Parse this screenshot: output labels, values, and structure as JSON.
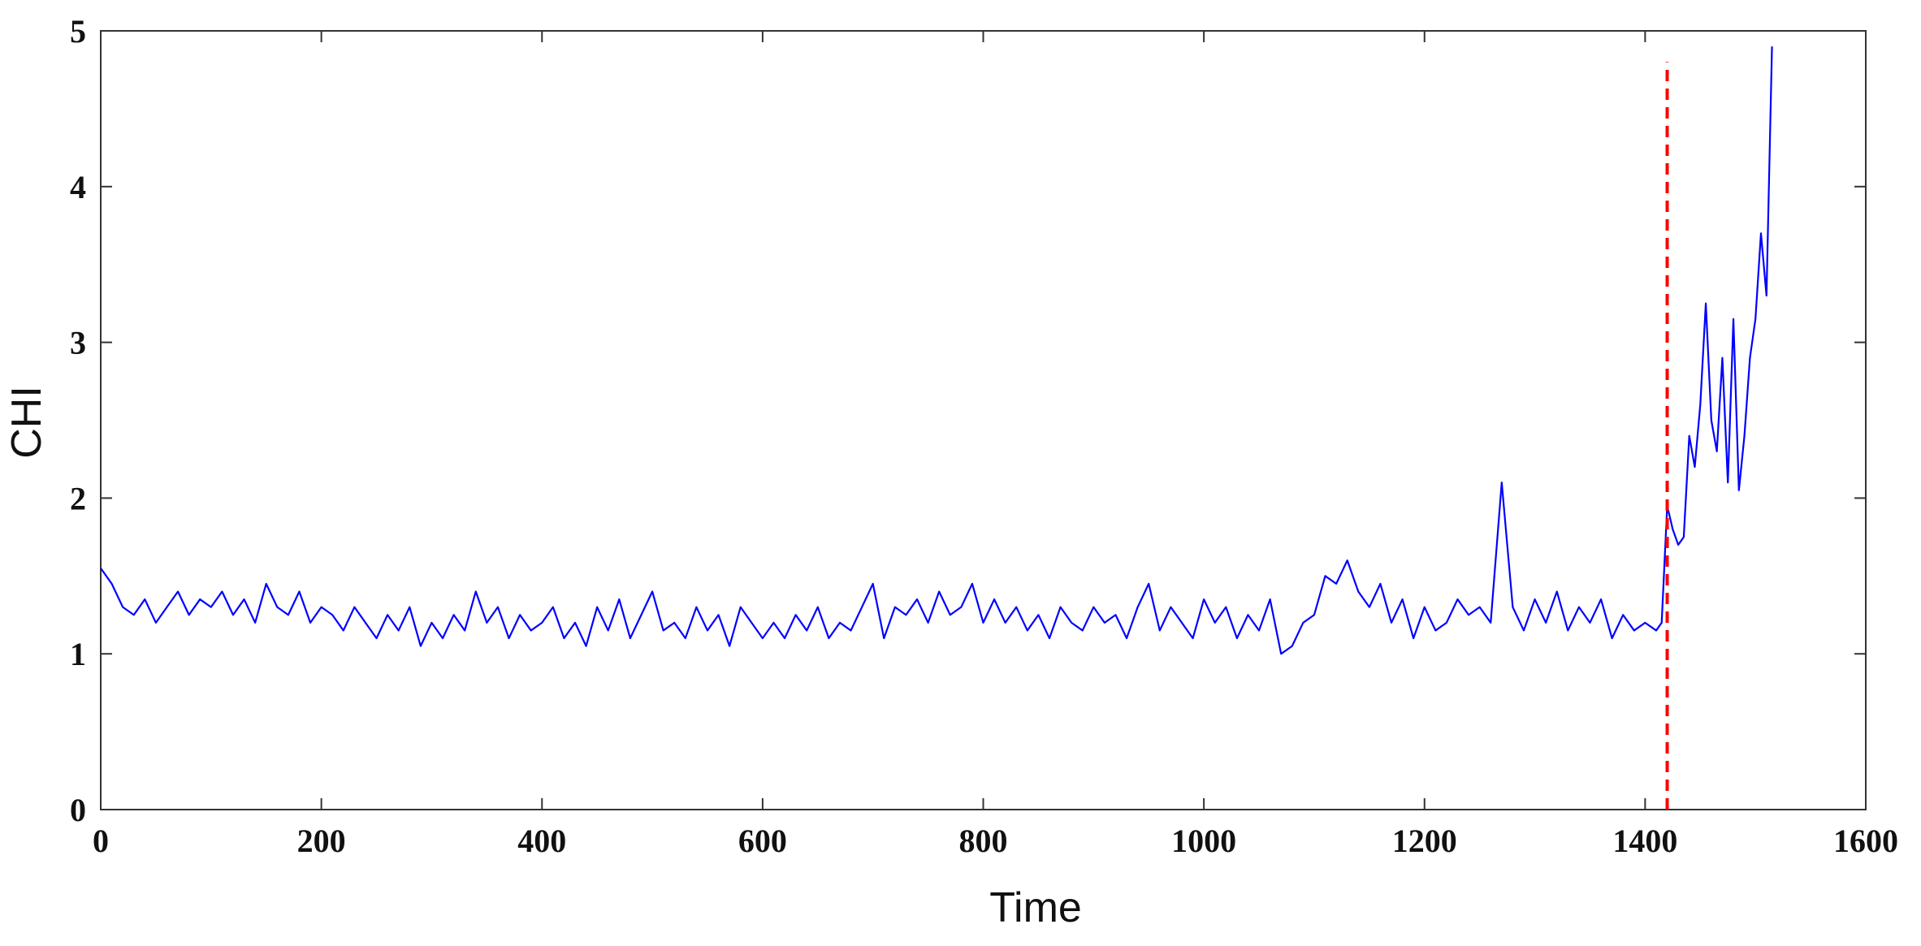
{
  "chart_data": {
    "type": "line",
    "xlabel": "Time",
    "ylabel": "CHI",
    "xlim": [
      0,
      1600
    ],
    "xticks": [
      0,
      200,
      400,
      600,
      800,
      1000,
      1200,
      1400,
      1600
    ],
    "ylim": [
      0,
      5
    ],
    "yticks": [
      0,
      1,
      2,
      3,
      4,
      5
    ],
    "series": [
      {
        "color": "#0000ff",
        "x": [
          0,
          10,
          20,
          30,
          40,
          50,
          60,
          70,
          80,
          90,
          100,
          110,
          120,
          130,
          140,
          150,
          160,
          170,
          180,
          190,
          200,
          210,
          220,
          230,
          240,
          250,
          260,
          270,
          280,
          290,
          300,
          310,
          320,
          330,
          340,
          350,
          360,
          370,
          380,
          390,
          400,
          410,
          420,
          430,
          440,
          450,
          460,
          470,
          480,
          490,
          500,
          510,
          520,
          530,
          540,
          550,
          560,
          570,
          580,
          590,
          600,
          610,
          620,
          630,
          640,
          650,
          660,
          670,
          680,
          690,
          700,
          710,
          720,
          730,
          740,
          750,
          760,
          770,
          780,
          790,
          800,
          810,
          820,
          830,
          840,
          850,
          860,
          870,
          880,
          890,
          900,
          910,
          920,
          930,
          940,
          950,
          960,
          970,
          980,
          990,
          1000,
          1010,
          1020,
          1030,
          1040,
          1050,
          1060,
          1070,
          1080,
          1090,
          1100,
          1110,
          1120,
          1130,
          1140,
          1150,
          1160,
          1170,
          1180,
          1190,
          1200,
          1210,
          1220,
          1230,
          1240,
          1250,
          1260,
          1270,
          1280,
          1290,
          1300,
          1310,
          1320,
          1330,
          1340,
          1350,
          1360,
          1370,
          1380,
          1390,
          1400,
          1410,
          1415,
          1420,
          1425,
          1430,
          1435,
          1440,
          1445,
          1450,
          1455,
          1460,
          1465,
          1470,
          1475,
          1480,
          1485,
          1490,
          1495,
          1500,
          1505,
          1510,
          1515
        ],
        "values": [
          1.55,
          1.45,
          1.3,
          1.25,
          1.35,
          1.2,
          1.3,
          1.4,
          1.25,
          1.35,
          1.3,
          1.4,
          1.25,
          1.35,
          1.2,
          1.45,
          1.3,
          1.25,
          1.4,
          1.2,
          1.3,
          1.25,
          1.15,
          1.3,
          1.2,
          1.1,
          1.25,
          1.15,
          1.3,
          1.05,
          1.2,
          1.1,
          1.25,
          1.15,
          1.4,
          1.2,
          1.3,
          1.1,
          1.25,
          1.15,
          1.2,
          1.3,
          1.1,
          1.2,
          1.05,
          1.3,
          1.15,
          1.35,
          1.1,
          1.25,
          1.4,
          1.15,
          1.2,
          1.1,
          1.3,
          1.15,
          1.25,
          1.05,
          1.3,
          1.2,
          1.1,
          1.2,
          1.1,
          1.25,
          1.15,
          1.3,
          1.1,
          1.2,
          1.15,
          1.3,
          1.45,
          1.1,
          1.3,
          1.25,
          1.35,
          1.2,
          1.4,
          1.25,
          1.3,
          1.45,
          1.2,
          1.35,
          1.2,
          1.3,
          1.15,
          1.25,
          1.1,
          1.3,
          1.2,
          1.15,
          1.3,
          1.2,
          1.25,
          1.1,
          1.3,
          1.45,
          1.15,
          1.3,
          1.2,
          1.1,
          1.35,
          1.2,
          1.3,
          1.1,
          1.25,
          1.15,
          1.35,
          1.0,
          1.05,
          1.2,
          1.25,
          1.5,
          1.45,
          1.6,
          1.4,
          1.3,
          1.45,
          1.2,
          1.35,
          1.1,
          1.3,
          1.15,
          1.2,
          1.35,
          1.25,
          1.3,
          1.2,
          2.1,
          1.3,
          1.15,
          1.35,
          1.2,
          1.4,
          1.15,
          1.3,
          1.2,
          1.35,
          1.1,
          1.25,
          1.15,
          1.2,
          1.15,
          1.2,
          1.95,
          1.8,
          1.7,
          1.75,
          2.4,
          2.2,
          2.6,
          3.25,
          2.5,
          2.3,
          2.9,
          2.1,
          3.15,
          2.05,
          2.4,
          2.9,
          3.15,
          3.7,
          3.3,
          4.9
        ]
      }
    ],
    "vline": {
      "x": 1420,
      "y": [
        0,
        4.8
      ],
      "color": "#ff0000",
      "dashed": true
    }
  }
}
